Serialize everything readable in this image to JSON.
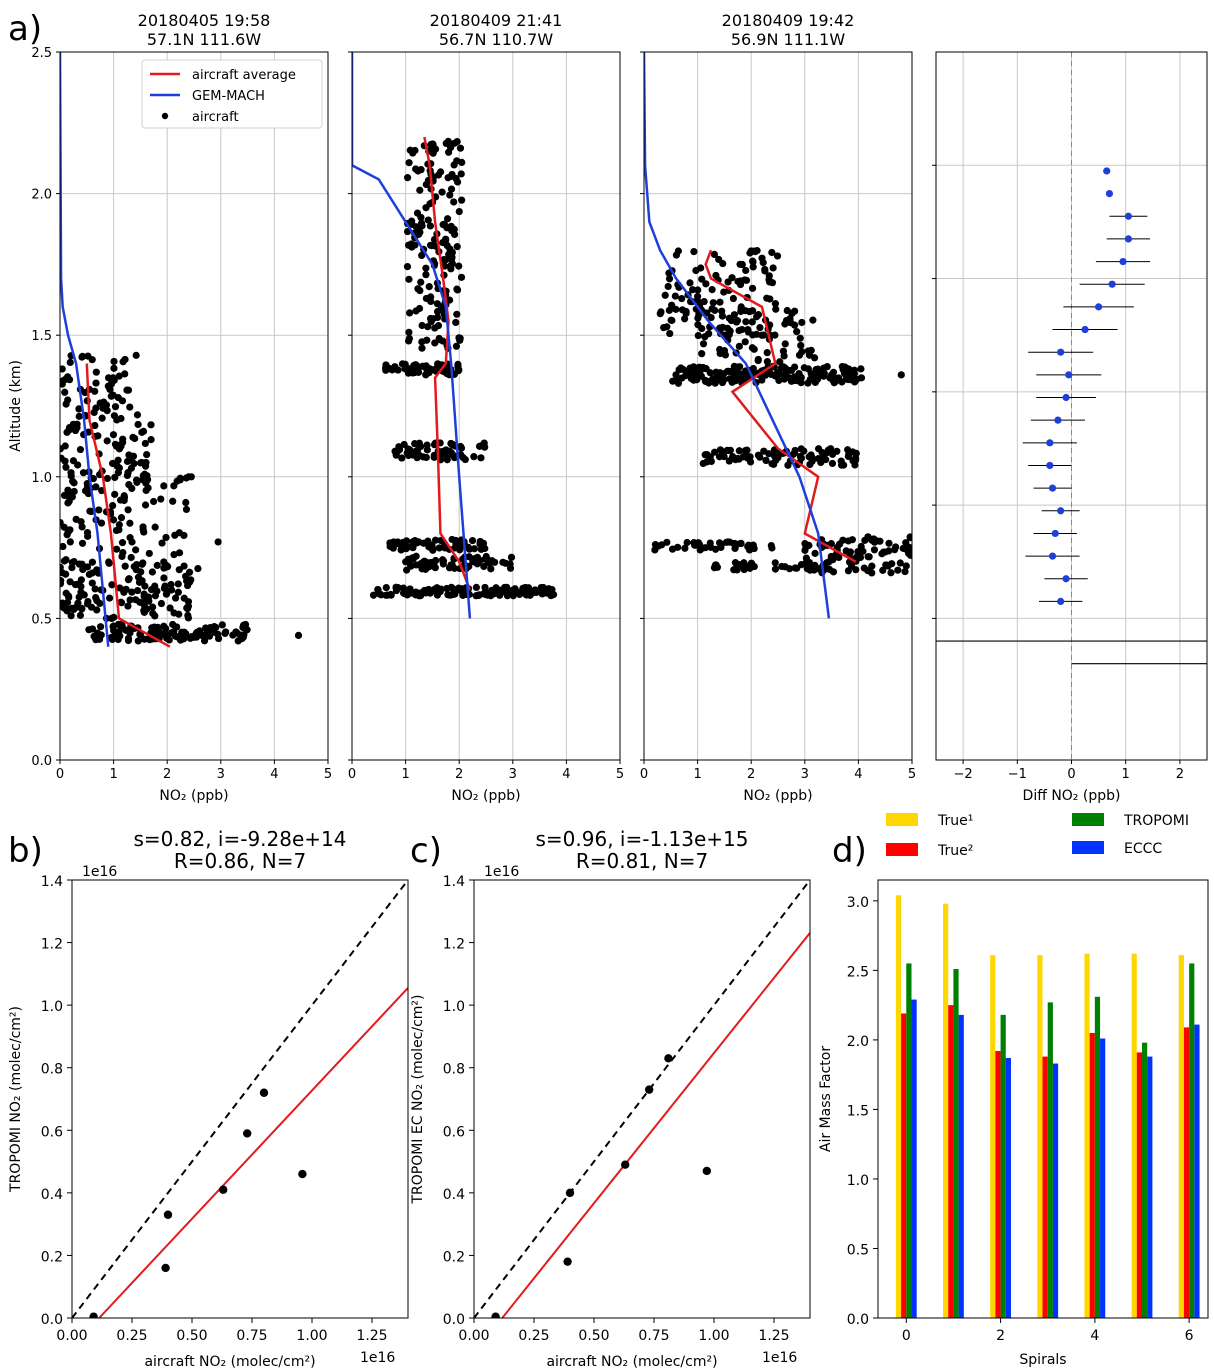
{
  "panel_labels": [
    "a)",
    "b)",
    "c)",
    "d)"
  ],
  "chart_data": [
    {
      "id": "a1",
      "type": "line",
      "title": "20180405 19:58\n57.1N 111.6W",
      "xlabel": "NO₂ (ppb)",
      "ylabel": "Altitude (km)",
      "xlim": [
        0,
        5
      ],
      "ylim": [
        0,
        2.5
      ],
      "xticks": [
        0,
        1,
        2,
        3,
        4,
        5
      ],
      "yticks": [
        0.0,
        0.5,
        1.0,
        1.5,
        2.0,
        2.5
      ],
      "grid": true,
      "legend": {
        "placement": "top-right",
        "entries": [
          "aircraft average",
          "GEM-MACH",
          "aircraft"
        ]
      },
      "series": [
        {
          "name": "aircraft average",
          "color": "#e31a1c",
          "x": [
            2.05,
            1.1,
            0.95,
            0.8,
            0.55,
            0.5
          ],
          "y": [
            0.4,
            0.5,
            0.8,
            1.0,
            1.2,
            1.4
          ]
        },
        {
          "name": "GEM-MACH",
          "color": "#1f3fdb",
          "x": [
            0.9,
            0.7,
            0.55,
            0.45,
            0.3,
            0.15,
            0.05,
            0.02,
            0.0
          ],
          "y": [
            0.4,
            0.8,
            1.0,
            1.2,
            1.4,
            1.5,
            1.6,
            1.7,
            2.5
          ]
        },
        {
          "name": "aircraft",
          "color": "#000000",
          "clusters": [
            {
              "xmin": 0.0,
              "xmax": 1.45,
              "ymin": 1.2,
              "ymax": 1.43,
              "n": 60
            },
            {
              "xmin": 0.0,
              "xmax": 1.7,
              "ymin": 0.95,
              "ymax": 1.2,
              "n": 80
            },
            {
              "xmin": 0.0,
              "xmax": 2.4,
              "ymin": 0.7,
              "ymax": 1.0,
              "n": 90
            },
            {
              "xmin": 0.0,
              "xmax": 2.6,
              "ymin": 0.58,
              "ymax": 0.7,
              "n": 80
            },
            {
              "xmin": 0.0,
              "xmax": 2.4,
              "ymin": 0.5,
              "ymax": 0.58,
              "n": 60
            },
            {
              "xmin": 0.5,
              "xmax": 3.5,
              "ymin": 0.42,
              "ymax": 0.48,
              "n": 110
            }
          ],
          "extra_points": [
            {
              "x": 4.45,
              "y": 0.44
            },
            {
              "x": 2.95,
              "y": 0.77
            },
            {
              "x": 2.45,
              "y": 1.0
            }
          ]
        }
      ]
    },
    {
      "id": "a2",
      "type": "line",
      "title": "20180409 21:41\n56.7N 110.7W",
      "xlabel": "NO₂ (ppb)",
      "xlim": [
        0,
        5
      ],
      "ylim": [
        0,
        2.5
      ],
      "xticks": [
        0,
        1,
        2,
        3,
        4,
        5
      ],
      "grid": true,
      "series": [
        {
          "name": "aircraft average",
          "color": "#e31a1c",
          "x": [
            2.2,
            2.0,
            1.65,
            1.6,
            1.55,
            1.75,
            1.8,
            1.7,
            1.55,
            1.45,
            1.35
          ],
          "y": [
            0.6,
            0.7,
            0.8,
            1.1,
            1.35,
            1.4,
            1.55,
            1.7,
            1.9,
            2.1,
            2.2
          ]
        },
        {
          "name": "GEM-MACH",
          "color": "#1f3fdb",
          "x": [
            2.2,
            2.0,
            1.85,
            1.75,
            1.5,
            1.0,
            0.5,
            0.0,
            0.0
          ],
          "y": [
            0.5,
            1.0,
            1.4,
            1.6,
            1.75,
            1.9,
            2.05,
            2.1,
            2.5
          ]
        },
        {
          "name": "aircraft",
          "color": "#000000",
          "clusters": [
            {
              "xmin": 1.0,
              "xmax": 2.05,
              "ymin": 1.45,
              "ymax": 2.2,
              "n": 170
            },
            {
              "xmin": 0.6,
              "xmax": 2.0,
              "ymin": 1.36,
              "ymax": 1.4,
              "n": 50
            },
            {
              "xmin": 0.8,
              "xmax": 2.5,
              "ymin": 1.06,
              "ymax": 1.12,
              "n": 60
            },
            {
              "xmin": 0.7,
              "xmax": 2.5,
              "ymin": 0.74,
              "ymax": 0.78,
              "n": 60
            },
            {
              "xmin": 1.0,
              "xmax": 3.0,
              "ymin": 0.67,
              "ymax": 0.72,
              "n": 70
            },
            {
              "xmin": 0.3,
              "xmax": 3.8,
              "ymin": 0.58,
              "ymax": 0.61,
              "n": 120
            }
          ],
          "extra_points": []
        }
      ]
    },
    {
      "id": "a3",
      "type": "line",
      "title": "20180409 19:42\n56.9N 111.1W",
      "xlabel": "NO₂ (ppb)",
      "xlim": [
        0,
        5
      ],
      "ylim": [
        0,
        2.5
      ],
      "xticks": [
        0,
        1,
        2,
        3,
        4,
        5
      ],
      "grid": true,
      "series": [
        {
          "name": "aircraft average",
          "color": "#e31a1c",
          "x": [
            3.95,
            3.0,
            3.25,
            2.5,
            1.65,
            2.45,
            2.2,
            1.25,
            1.15,
            1.25
          ],
          "y": [
            0.7,
            0.8,
            1.0,
            1.1,
            1.3,
            1.4,
            1.6,
            1.7,
            1.75,
            1.8
          ]
        },
        {
          "name": "GEM-MACH",
          "color": "#1f3fdb",
          "x": [
            3.45,
            3.25,
            2.9,
            2.4,
            1.9,
            1.2,
            0.6,
            0.3,
            0.1,
            0.02,
            0.0
          ],
          "y": [
            0.5,
            0.8,
            1.0,
            1.2,
            1.4,
            1.55,
            1.7,
            1.8,
            1.9,
            2.1,
            2.5
          ]
        },
        {
          "name": "aircraft",
          "color": "#000000",
          "clusters": [
            {
              "xmin": 0.3,
              "xmax": 2.5,
              "ymin": 1.5,
              "ymax": 1.8,
              "n": 110
            },
            {
              "xmin": 1.0,
              "xmax": 3.3,
              "ymin": 1.4,
              "ymax": 1.6,
              "n": 70
            },
            {
              "xmin": 0.5,
              "xmax": 4.1,
              "ymin": 1.33,
              "ymax": 1.39,
              "n": 180
            },
            {
              "xmin": 1.0,
              "xmax": 4.0,
              "ymin": 1.04,
              "ymax": 1.1,
              "n": 90
            },
            {
              "xmin": 0.2,
              "xmax": 2.5,
              "ymin": 0.74,
              "ymax": 0.77,
              "n": 40
            },
            {
              "xmin": 3.0,
              "xmax": 5.0,
              "ymin": 0.66,
              "ymax": 0.79,
              "n": 90
            },
            {
              "xmin": 1.3,
              "xmax": 3.2,
              "ymin": 0.67,
              "ymax": 0.7,
              "n": 40
            }
          ],
          "extra_points": [
            {
              "x": 4.8,
              "y": 1.36
            }
          ]
        }
      ]
    },
    {
      "id": "a4",
      "type": "scatter",
      "xlabel": "Diff NO₂ (ppb)",
      "xlim": [
        -2.5,
        2.5
      ],
      "ylim": [
        0,
        2.5
      ],
      "xticks": [
        -2,
        -1,
        0,
        1,
        2
      ],
      "xticklabels": [
        "−2",
        "−1",
        "0",
        "1",
        "2"
      ],
      "grid": true,
      "zero_line": true,
      "y": [
        2.08,
        2.0,
        1.92,
        1.84,
        1.76,
        1.68,
        1.6,
        1.52,
        1.44,
        1.36,
        1.28,
        1.2,
        1.12,
        1.04,
        0.96,
        0.88,
        0.8,
        0.72,
        0.64,
        0.56
      ],
      "x": [
        0.65,
        0.7,
        1.05,
        1.05,
        0.95,
        0.75,
        0.5,
        0.25,
        -0.2,
        -0.05,
        -0.1,
        -0.25,
        -0.4,
        -0.4,
        -0.35,
        -0.2,
        -0.3,
        -0.35,
        -0.1,
        -0.2
      ],
      "err": [
        0,
        0,
        0.35,
        0.4,
        0.5,
        0.6,
        0.65,
        0.6,
        0.6,
        0.6,
        0.55,
        0.5,
        0.5,
        0.4,
        0.35,
        0.35,
        0.4,
        0.5,
        0.4,
        0.4
      ],
      "extra_segments": [
        {
          "x0": -2.5,
          "x1": 2.5,
          "y": 0.42
        },
        {
          "x0": 0.0,
          "x1": 2.5,
          "y": 0.34
        }
      ]
    },
    {
      "id": "b",
      "type": "scatter",
      "title": "s=0.82, i=-9.28e+14\nR=0.86, N=7",
      "xlabel": "aircraft NO₂ (molec/cm²)",
      "ylabel": "TROPOMI NO₂ (molec/cm²)",
      "offset_text": "1e16",
      "xlim": [
        0,
        1.4
      ],
      "ylim": [
        0,
        1.4
      ],
      "xticks": [
        0.0,
        0.25,
        0.5,
        0.75,
        1.0,
        1.25
      ],
      "xticklabels": [
        "0.00",
        "0.25",
        "0.50",
        "0.75",
        "1.00",
        "1.25"
      ],
      "yticks": [
        0.0,
        0.2,
        0.4,
        0.6,
        0.8,
        1.0,
        1.2,
        1.4
      ],
      "yticklabels": [
        "0.0",
        "0.2",
        "0.4",
        "0.6",
        "0.8",
        "1.0",
        "1.2",
        "1.4"
      ],
      "x": [
        0.09,
        0.39,
        0.4,
        0.63,
        0.73,
        0.8,
        0.96
      ],
      "y": [
        0.004,
        0.16,
        0.33,
        0.41,
        0.59,
        0.72,
        0.46
      ],
      "fit": {
        "slope": 0.82,
        "intercept": -0.0928,
        "color": "#e31a1c"
      },
      "one_to_one": true
    },
    {
      "id": "c",
      "type": "scatter",
      "title": "s=0.96, i=-1.13e+15\nR=0.81, N=7",
      "xlabel": "aircraft NO₂ (molec/cm²)",
      "ylabel": "TROPOMI EC NO₂ (molec/cm²)",
      "offset_text": "1e16",
      "xlim": [
        0,
        1.4
      ],
      "ylim": [
        0,
        1.4
      ],
      "xticks": [
        0.0,
        0.25,
        0.5,
        0.75,
        1.0,
        1.25
      ],
      "xticklabels": [
        "0.00",
        "0.25",
        "0.50",
        "0.75",
        "1.00",
        "1.25"
      ],
      "yticks": [
        0.0,
        0.2,
        0.4,
        0.6,
        0.8,
        1.0,
        1.2,
        1.4
      ],
      "yticklabels": [
        "0.0",
        "0.2",
        "0.4",
        "0.6",
        "0.8",
        "1.0",
        "1.2",
        "1.4"
      ],
      "x": [
        0.09,
        0.39,
        0.4,
        0.63,
        0.73,
        0.81,
        0.97
      ],
      "y": [
        0.004,
        0.18,
        0.4,
        0.49,
        0.73,
        0.83,
        0.47
      ],
      "fit": {
        "slope": 0.96,
        "intercept": -0.113,
        "color": "#e31a1c"
      },
      "one_to_one": true
    },
    {
      "id": "d",
      "type": "bar",
      "xlabel": "Spirals",
      "ylabel": "Air Mass Factor",
      "xlim": [
        -0.6,
        6.4
      ],
      "ylim": [
        0,
        3.15
      ],
      "xticks": [
        0,
        2,
        4,
        6
      ],
      "yticks": [
        0.0,
        0.5,
        1.0,
        1.5,
        2.0,
        2.5,
        3.0
      ],
      "yticklabels": [
        "0.0",
        "0.5",
        "1.0",
        "1.5",
        "2.0",
        "2.5",
        "3.0"
      ],
      "categories": [
        0,
        1,
        2,
        3,
        4,
        5,
        6
      ],
      "legend": {
        "placement": "top",
        "entries": [
          "True¹",
          "True²",
          "TROPOMI",
          "ECCC"
        ]
      },
      "series": [
        {
          "name": "True¹",
          "color": "#ffd700",
          "values": [
            3.04,
            2.98,
            2.61,
            2.61,
            2.62,
            2.62,
            2.61
          ]
        },
        {
          "name": "True²",
          "color": "#ff0000",
          "values": [
            2.19,
            2.25,
            1.92,
            1.88,
            2.05,
            1.91,
            2.09
          ]
        },
        {
          "name": "TROPOMI",
          "color": "#008000",
          "values": [
            2.55,
            2.51,
            2.18,
            2.27,
            2.31,
            1.98,
            2.55
          ]
        },
        {
          "name": "ECCC",
          "color": "#0033ff",
          "values": [
            2.29,
            2.18,
            1.87,
            1.83,
            2.01,
            1.88,
            2.11
          ]
        }
      ]
    }
  ]
}
